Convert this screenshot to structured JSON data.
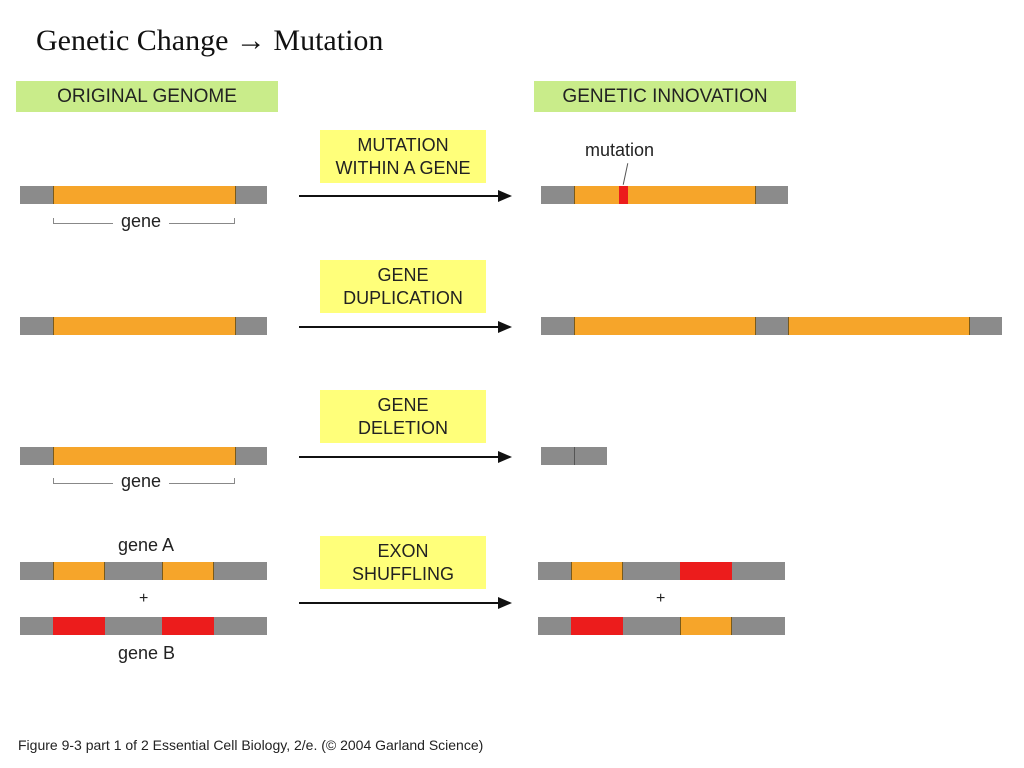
{
  "slide": {
    "title": "Genetic Change → Mutation"
  },
  "headers": {
    "original": "ORIGINAL GENOME",
    "innovation": "GENETIC INNOVATION"
  },
  "processes": [
    {
      "line1": "MUTATION",
      "line2": "WITHIN A GENE"
    },
    {
      "line1": "GENE",
      "line2": "DUPLICATION"
    },
    {
      "line1": "GENE",
      "line2": "DELETION"
    },
    {
      "line1": "EXON",
      "line2": "SHUFFLING"
    }
  ],
  "labels": {
    "gene": "gene",
    "mutation": "mutation",
    "gene_a": "gene A",
    "gene_b": "gene B",
    "plus": "+"
  },
  "colors": {
    "noncoding_dna": "#8b8b8b",
    "gene": "#f6a52a",
    "gene_b_exon": "#ec1c1c",
    "header_bg": "#c9ec8a",
    "process_bg": "#ffff7a"
  },
  "caption": "Figure 9-3  part 1 of 2  Essential Cell Biology, 2/e. (© 2004 Garland Science)"
}
